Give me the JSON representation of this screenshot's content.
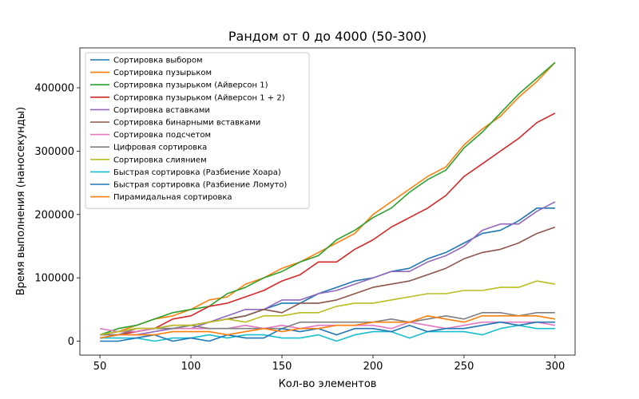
{
  "chart_data": {
    "type": "line",
    "title": "Рандом от 0 до 4000 (50-300)",
    "xlabel": "Кол-во элементов",
    "ylabel": "Время выполнения (наносекунды)",
    "xlim": [
      39,
      311
    ],
    "ylim": [
      -22000,
      463000
    ],
    "xticks": [
      50,
      100,
      150,
      200,
      250,
      300
    ],
    "yticks": [
      0,
      100000,
      200000,
      300000,
      400000
    ],
    "grid": false,
    "legend_position": "top-left",
    "x": [
      50,
      60,
      70,
      80,
      90,
      100,
      110,
      120,
      130,
      140,
      150,
      160,
      170,
      180,
      190,
      200,
      210,
      220,
      230,
      240,
      250,
      260,
      270,
      280,
      290,
      300
    ],
    "series": [
      {
        "name": "Сортировка выбором",
        "color": "#1f77b4",
        "values": [
          5000,
          10000,
          15000,
          20000,
          20000,
          25000,
          30000,
          35000,
          40000,
          50000,
          60000,
          60000,
          75000,
          85000,
          95000,
          100000,
          110000,
          115000,
          130000,
          140000,
          155000,
          170000,
          175000,
          190000,
          210000,
          210000
        ]
      },
      {
        "name": "Сортировка пузырьком",
        "color": "#ff7f0e",
        "values": [
          10000,
          15000,
          25000,
          35000,
          40000,
          50000,
          65000,
          70000,
          90000,
          100000,
          115000,
          125000,
          140000,
          155000,
          170000,
          200000,
          220000,
          240000,
          260000,
          275000,
          310000,
          335000,
          355000,
          385000,
          410000,
          440000
        ]
      },
      {
        "name": "Сортировка пузырьком (Айверсон 1)",
        "color": "#2ca02c",
        "values": [
          10000,
          20000,
          25000,
          35000,
          45000,
          50000,
          55000,
          75000,
          85000,
          100000,
          110000,
          125000,
          135000,
          160000,
          175000,
          195000,
          210000,
          235000,
          255000,
          270000,
          305000,
          330000,
          360000,
          390000,
          415000,
          440000
        ]
      },
      {
        "name": "Сортировка пузырьком (Айверсон 1 + 2)",
        "color": "#d62728",
        "values": [
          5000,
          10000,
          15000,
          20000,
          35000,
          40000,
          55000,
          60000,
          70000,
          80000,
          95000,
          105000,
          125000,
          125000,
          145000,
          160000,
          180000,
          195000,
          210000,
          230000,
          260000,
          280000,
          300000,
          320000,
          345000,
          360000
        ]
      },
      {
        "name": "Сортировка вставками",
        "color": "#9467bd",
        "values": [
          10000,
          10000,
          10000,
          15000,
          20000,
          20000,
          30000,
          40000,
          50000,
          50000,
          65000,
          65000,
          75000,
          80000,
          90000,
          100000,
          110000,
          110000,
          125000,
          135000,
          150000,
          175000,
          185000,
          185000,
          205000,
          220000
        ]
      },
      {
        "name": "Сортировка бинарными вставками",
        "color": "#8c564b",
        "values": [
          10000,
          15000,
          20000,
          20000,
          25000,
          25000,
          30000,
          35000,
          40000,
          50000,
          45000,
          60000,
          60000,
          65000,
          75000,
          85000,
          90000,
          95000,
          105000,
          115000,
          130000,
          140000,
          145000,
          155000,
          170000,
          180000
        ]
      },
      {
        "name": "Сортировка подсчетом",
        "color": "#e377c2",
        "values": [
          20000,
          15000,
          15000,
          20000,
          20000,
          20000,
          20000,
          20000,
          25000,
          20000,
          25000,
          20000,
          25000,
          25000,
          25000,
          25000,
          20000,
          30000,
          25000,
          20000,
          25000,
          30000,
          30000,
          30000,
          30000,
          25000
        ]
      },
      {
        "name": "Цифровая сортировка",
        "color": "#7f7f7f",
        "values": [
          10000,
          10000,
          20000,
          20000,
          20000,
          25000,
          20000,
          20000,
          20000,
          20000,
          20000,
          30000,
          30000,
          30000,
          30000,
          30000,
          35000,
          30000,
          35000,
          40000,
          35000,
          45000,
          45000,
          40000,
          45000,
          45000
        ]
      },
      {
        "name": "Сортировка слиянием",
        "color": "#bcbd22",
        "values": [
          10000,
          15000,
          20000,
          20000,
          25000,
          25000,
          30000,
          35000,
          30000,
          40000,
          40000,
          45000,
          45000,
          55000,
          60000,
          60000,
          65000,
          70000,
          75000,
          75000,
          80000,
          80000,
          85000,
          85000,
          95000,
          90000
        ]
      },
      {
        "name": "Быстрая сортировка (Разбиение Хоара)",
        "color": "#17becf",
        "values": [
          5000,
          5000,
          5000,
          0,
          5000,
          5000,
          10000,
          5000,
          10000,
          10000,
          5000,
          5000,
          10000,
          0,
          10000,
          15000,
          15000,
          5000,
          15000,
          15000,
          15000,
          10000,
          20000,
          25000,
          20000,
          20000
        ]
      },
      {
        "name": "Быстрая сортировка (Разбиение Ломуто)",
        "color": "#1f77b4",
        "values": [
          0,
          0,
          5000,
          10000,
          0,
          5000,
          0,
          10000,
          5000,
          5000,
          20000,
          15000,
          20000,
          10000,
          20000,
          20000,
          15000,
          25000,
          15000,
          20000,
          20000,
          25000,
          30000,
          25000,
          30000,
          30000
        ]
      },
      {
        "name": "Пирамидальная сортировка",
        "color": "#ff7f0e",
        "values": [
          5000,
          10000,
          10000,
          10000,
          15000,
          15000,
          15000,
          10000,
          15000,
          20000,
          15000,
          20000,
          20000,
          25000,
          25000,
          30000,
          30000,
          30000,
          40000,
          35000,
          30000,
          40000,
          40000,
          40000,
          40000,
          35000
        ]
      }
    ]
  }
}
